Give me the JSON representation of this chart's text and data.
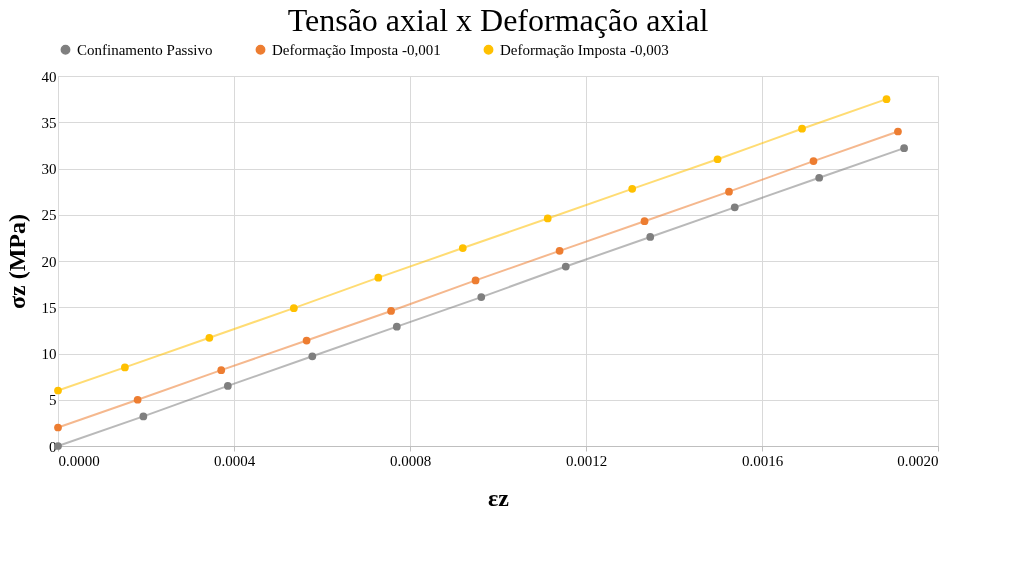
{
  "chart_data": {
    "type": "line",
    "title": "Tensão axial x Deformação axial",
    "xlabel": "εz",
    "ylabel": "σz (MPa)",
    "series": [
      {
        "name": "Confinamento Passivo",
        "color": "#7f7f7f",
        "x": [
          0,
          0.000194,
          0.000386,
          0.000578,
          0.00077,
          0.000962,
          0.001154,
          0.001346,
          0.001538,
          0.00173,
          0.001923
        ],
        "values": [
          0,
          3.2,
          6.5,
          9.7,
          12.9,
          16.1,
          19.4,
          22.6,
          25.8,
          29.0,
          32.2
        ]
      },
      {
        "name": "Deformação Imposta -0,001",
        "color": "#ed7d31",
        "x": [
          0,
          0.000181,
          0.000371,
          0.000565,
          0.000757,
          0.000949,
          0.00114,
          0.001333,
          0.001525,
          0.001717,
          0.001909
        ],
        "values": [
          2.0,
          5.0,
          8.2,
          11.4,
          14.6,
          17.9,
          21.1,
          24.3,
          27.5,
          30.8,
          34.0
        ]
      },
      {
        "name": "Deformação Imposta -0,003",
        "color": "#ffc000",
        "x": [
          0,
          0.000152,
          0.000344,
          0.000536,
          0.000728,
          0.00092,
          0.001113,
          0.001305,
          0.001499,
          0.001691,
          0.001883
        ],
        "values": [
          6.0,
          8.5,
          11.7,
          14.9,
          18.2,
          21.4,
          24.6,
          27.8,
          31.0,
          34.3,
          37.5
        ]
      }
    ],
    "xlim": [
      0,
      0.002
    ],
    "xticks": [
      {
        "value": 0,
        "label": "0.0000"
      },
      {
        "value": 0.0004,
        "label": "0.0004"
      },
      {
        "value": 0.0008,
        "label": "0.0008"
      },
      {
        "value": 0.0012,
        "label": "0.0012"
      },
      {
        "value": 0.0016,
        "label": "0.0016"
      },
      {
        "value": 0.002,
        "label": "0.0020"
      }
    ],
    "ylim": [
      0,
      40
    ],
    "yticks": [
      0,
      5,
      10,
      15,
      20,
      25,
      30,
      35,
      40
    ],
    "grid": true,
    "legend": "top",
    "marker": "circle",
    "line_style": "solid"
  }
}
